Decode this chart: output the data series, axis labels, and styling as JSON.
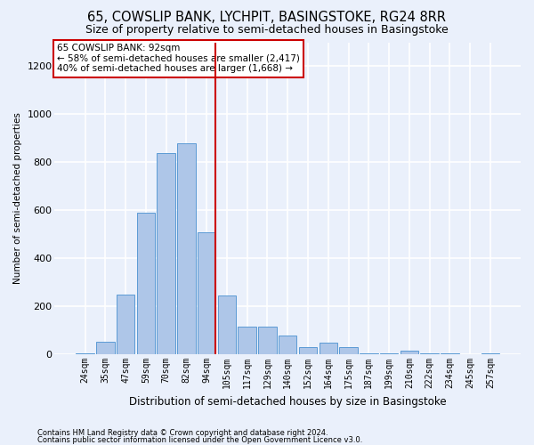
{
  "title": "65, COWSLIP BANK, LYCHPIT, BASINGSTOKE, RG24 8RR",
  "subtitle": "Size of property relative to semi-detached houses in Basingstoke",
  "xlabel": "Distribution of semi-detached houses by size in Basingstoke",
  "ylabel": "Number of semi-detached properties",
  "footer1": "Contains HM Land Registry data © Crown copyright and database right 2024.",
  "footer2": "Contains public sector information licensed under the Open Government Licence v3.0.",
  "bar_labels": [
    "24sqm",
    "35sqm",
    "47sqm",
    "59sqm",
    "70sqm",
    "82sqm",
    "94sqm",
    "105sqm",
    "117sqm",
    "129sqm",
    "140sqm",
    "152sqm",
    "164sqm",
    "175sqm",
    "187sqm",
    "199sqm",
    "210sqm",
    "222sqm",
    "234sqm",
    "245sqm",
    "257sqm"
  ],
  "bar_values": [
    5,
    52,
    250,
    590,
    840,
    880,
    510,
    245,
    115,
    115,
    80,
    30,
    50,
    30,
    5,
    5,
    15,
    5,
    5,
    0,
    5
  ],
  "bar_color": "#aec6e8",
  "bar_edge_color": "#5b9bd5",
  "background_color": "#eaf0fb",
  "grid_color": "#ffffff",
  "vline_x_index": 6,
  "vline_color": "#cc0000",
  "ylim": [
    0,
    1300
  ],
  "yticks": [
    0,
    200,
    400,
    600,
    800,
    1000,
    1200
  ],
  "annotation_text": "65 COWSLIP BANK: 92sqm\n← 58% of semi-detached houses are smaller (2,417)\n40% of semi-detached houses are larger (1,668) →",
  "annotation_box_color": "#ffffff",
  "annotation_border_color": "#cc0000",
  "title_fontsize": 10.5,
  "subtitle_fontsize": 9
}
